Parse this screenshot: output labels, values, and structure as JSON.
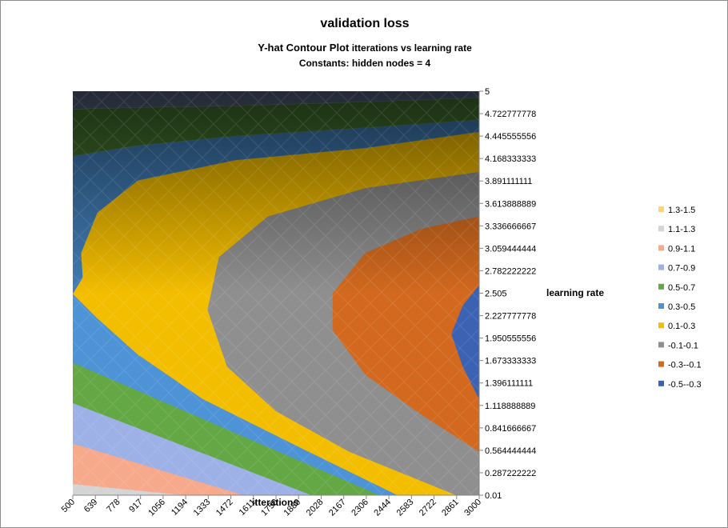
{
  "chart_data": {
    "type": "contour",
    "title": "validation loss",
    "subtitle_bold": "Y-hat Contour Plot",
    "subtitle_rest": " itterations vs learning rate",
    "constants_text": "Constants:   hidden nodes = 4",
    "xlabel": "itterations",
    "ylabel": "learning rate",
    "x_ticks": [
      "500",
      "639",
      "778",
      "917",
      "1056",
      "1194",
      "1333",
      "1472",
      "1611",
      "1750",
      "1889",
      "2028",
      "2167",
      "2306",
      "2444",
      "2583",
      "2722",
      "2861",
      "3000"
    ],
    "y_ticks": [
      "0.01",
      "0.287222222",
      "0.564444444",
      "0.841666667",
      "1.118888889",
      "1.396111111",
      "1.673333333",
      "1.950555556",
      "2.227777778",
      "2.505",
      "2.782222222",
      "3.059444444",
      "3.336666667",
      "3.613888889",
      "3.891111111",
      "4.168333333",
      "4.445555556",
      "4.722777778",
      "5"
    ],
    "xlim": [
      500,
      3000
    ],
    "ylim": [
      0.01,
      5
    ],
    "legend_position": "right",
    "legend": [
      {
        "label": "1.3-1.5",
        "color": "#ffd27f"
      },
      {
        "label": "1.1-1.3",
        "color": "#d4d4d4"
      },
      {
        "label": "0.9-1.1",
        "color": "#f7a98c"
      },
      {
        "label": "0.7-0.9",
        "color": "#9db1e6"
      },
      {
        "label": "0.5-0.7",
        "color": "#63a845"
      },
      {
        "label": "0.3-0.5",
        "color": "#4d93d6"
      },
      {
        "label": "0.1-0.3",
        "color": "#f3bd00"
      },
      {
        "label": "-0.1-0.1",
        "color": "#8f8f8f"
      },
      {
        "label": "-0.3--0.1",
        "color": "#d2691e"
      },
      {
        "label": "-0.5--0.3",
        "color": "#3b62b3"
      }
    ],
    "bands": [
      {
        "range": "1.1-1.3",
        "color": "#d4d4d4",
        "shade": 0.0,
        "polygon": [
          [
            500,
            0.01
          ],
          [
            500,
            0.15
          ],
          [
            1200,
            0.01
          ]
        ]
      },
      {
        "range": "0.9-1.1",
        "color": "#f7a98c",
        "shade": 0.0,
        "polygon": [
          [
            500,
            0.15
          ],
          [
            500,
            0.65
          ],
          [
            1555,
            0.01
          ],
          [
            1200,
            0.01
          ]
        ]
      },
      {
        "range": "0.7-0.9",
        "color": "#9db1e6",
        "shade": 0.0,
        "polygon": [
          [
            500,
            0.65
          ],
          [
            500,
            1.15
          ],
          [
            1972,
            0.01
          ],
          [
            1555,
            0.01
          ]
        ]
      },
      {
        "range": "0.5-0.7",
        "color": "#63a845",
        "shade": 0.0,
        "polygon": [
          [
            500,
            1.15
          ],
          [
            500,
            1.65
          ],
          [
            2389,
            0.01
          ],
          [
            1972,
            0.01
          ]
        ]
      },
      {
        "range": "0.3-0.5",
        "color": "#4d93d6",
        "shade": 0.0,
        "polygon": [
          [
            500,
            1.65
          ],
          [
            500,
            2.5
          ],
          [
            650,
            2.2
          ],
          [
            900,
            1.75
          ],
          [
            1300,
            1.2
          ],
          [
            1900,
            0.6
          ],
          [
            2500,
            0.01
          ],
          [
            2389,
            0.01
          ]
        ]
      },
      {
        "range": "0.1-0.3",
        "color": "#f3bd00",
        "shade": 0.0,
        "polygon": [
          [
            500,
            2.5
          ],
          [
            650,
            2.2
          ],
          [
            900,
            1.75
          ],
          [
            1300,
            1.2
          ],
          [
            1900,
            0.6
          ],
          [
            2500,
            0.01
          ],
          [
            2861,
            0.01
          ],
          [
            2200,
            0.55
          ],
          [
            1750,
            1.05
          ],
          [
            1450,
            1.6
          ],
          [
            1330,
            2.3
          ],
          [
            1400,
            2.95
          ],
          [
            1700,
            3.45
          ],
          [
            2300,
            3.8
          ],
          [
            3000,
            4.0
          ],
          [
            3000,
            4.5
          ],
          [
            2300,
            4.3
          ],
          [
            1500,
            4.15
          ],
          [
            900,
            3.9
          ],
          [
            650,
            3.5
          ],
          [
            550,
            3.0
          ],
          [
            560,
            2.7
          ]
        ]
      },
      {
        "range": "-0.1-0.1",
        "color": "#8f8f8f",
        "shade": 0.0,
        "polygon": [
          [
            2861,
            0.01
          ],
          [
            2200,
            0.55
          ],
          [
            1750,
            1.05
          ],
          [
            1450,
            1.6
          ],
          [
            1330,
            2.3
          ],
          [
            1400,
            2.95
          ],
          [
            1700,
            3.45
          ],
          [
            2300,
            3.8
          ],
          [
            3000,
            4.0
          ],
          [
            3000,
            3.45
          ],
          [
            2650,
            3.3
          ],
          [
            2300,
            3.0
          ],
          [
            2100,
            2.5
          ],
          [
            2100,
            2.05
          ],
          [
            2300,
            1.5
          ],
          [
            2650,
            1.0
          ],
          [
            3000,
            0.55
          ],
          [
            3000,
            0.01
          ]
        ]
      },
      {
        "range": "-0.3--0.1",
        "color": "#d2691e",
        "shade": 0.0,
        "polygon": [
          [
            3000,
            0.55
          ],
          [
            2650,
            1.0
          ],
          [
            2300,
            1.5
          ],
          [
            2100,
            2.05
          ],
          [
            2100,
            2.5
          ],
          [
            2300,
            3.0
          ],
          [
            2650,
            3.3
          ],
          [
            3000,
            3.45
          ],
          [
            3000,
            2.6
          ],
          [
            2900,
            2.35
          ],
          [
            2830,
            2.0
          ],
          [
            2900,
            1.6
          ],
          [
            3000,
            1.2
          ]
        ]
      },
      {
        "range": "-0.5--0.3",
        "color": "#3b62b3",
        "shade": 0.0,
        "polygon": [
          [
            3000,
            1.2
          ],
          [
            2900,
            1.6
          ],
          [
            2830,
            2.0
          ],
          [
            2900,
            2.35
          ],
          [
            3000,
            2.6
          ]
        ]
      },
      {
        "range": "0.3-0.5",
        "color": "#4d93d6",
        "shade": 0.15,
        "polygon": [
          [
            500,
            2.5
          ],
          [
            560,
            2.7
          ],
          [
            550,
            3.0
          ],
          [
            650,
            3.5
          ],
          [
            900,
            3.9
          ],
          [
            1500,
            4.15
          ],
          [
            2300,
            4.3
          ],
          [
            3000,
            4.5
          ],
          [
            3000,
            4.65
          ],
          [
            2300,
            4.55
          ],
          [
            1500,
            4.45
          ],
          [
            900,
            4.33
          ],
          [
            500,
            4.2
          ]
        ]
      },
      {
        "range": "0.5-0.7",
        "color": "#63a845",
        "shade": 0.3,
        "polygon": [
          [
            500,
            4.2
          ],
          [
            900,
            4.33
          ],
          [
            1500,
            4.45
          ],
          [
            2300,
            4.55
          ],
          [
            3000,
            4.65
          ],
          [
            3000,
            4.92
          ],
          [
            2300,
            4.87
          ],
          [
            1500,
            4.82
          ],
          [
            900,
            4.8
          ],
          [
            500,
            4.78
          ]
        ]
      },
      {
        "range": "0.7-0.9",
        "color": "#9db1e6",
        "shade": 0.42,
        "polygon": [
          [
            500,
            4.78
          ],
          [
            900,
            4.8
          ],
          [
            1500,
            4.82
          ],
          [
            2300,
            4.87
          ],
          [
            3000,
            4.92
          ],
          [
            3000,
            5
          ],
          [
            500,
            5
          ]
        ]
      }
    ],
    "top_region": {
      "from": 2.5,
      "to": 5,
      "max_shade": 0.62
    }
  }
}
